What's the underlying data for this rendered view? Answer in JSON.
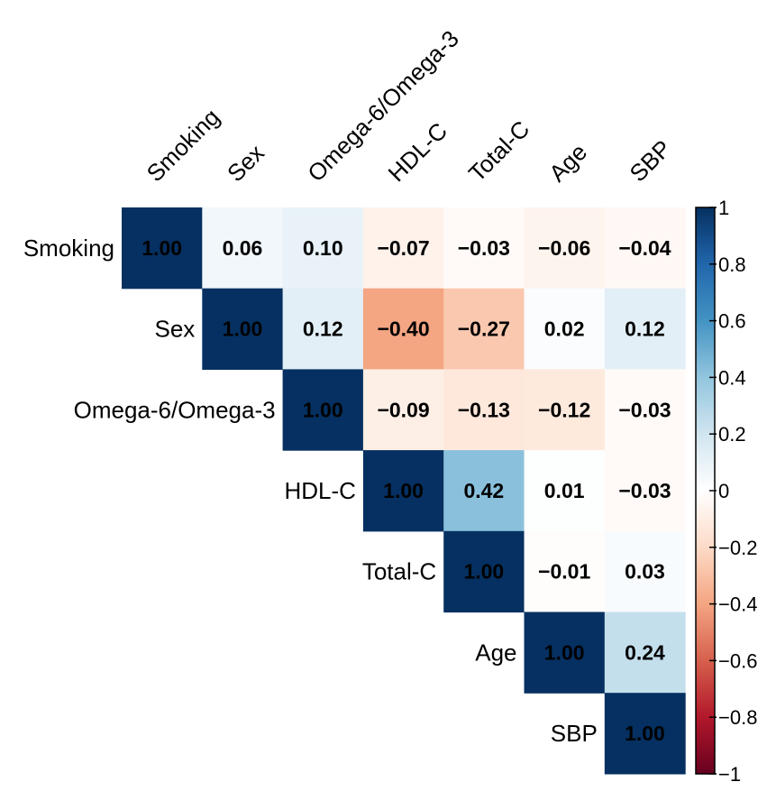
{
  "chart_data": {
    "type": "heatmap",
    "subtype": "upper-triangle correlation matrix",
    "variables": [
      "Smoking",
      "Sex",
      "Omega-6/Omega-3",
      "HDL-C",
      "Total-C",
      "Age",
      "SBP"
    ],
    "matrix": [
      [
        1.0,
        0.06,
        0.1,
        -0.07,
        -0.03,
        -0.06,
        -0.04
      ],
      [
        null,
        1.0,
        0.12,
        -0.4,
        -0.27,
        0.02,
        0.12
      ],
      [
        null,
        null,
        1.0,
        -0.09,
        -0.13,
        -0.12,
        -0.03
      ],
      [
        null,
        null,
        null,
        1.0,
        0.42,
        0.01,
        -0.03
      ],
      [
        null,
        null,
        null,
        null,
        1.0,
        -0.01,
        0.03
      ],
      [
        null,
        null,
        null,
        null,
        null,
        1.0,
        0.24
      ],
      [
        null,
        null,
        null,
        null,
        null,
        null,
        1.0
      ]
    ],
    "value_labels": [
      [
        "1.00",
        "0.06",
        "0.10",
        "−0.07",
        "−0.03",
        "−0.06",
        "−0.04"
      ],
      [
        null,
        "1.00",
        "0.12",
        "−0.40",
        "−0.27",
        "0.02",
        "0.12"
      ],
      [
        null,
        null,
        "1.00",
        "−0.09",
        "−0.13",
        "−0.12",
        "−0.03"
      ],
      [
        null,
        null,
        null,
        "1.00",
        "0.42",
        "0.01",
        "−0.03"
      ],
      [
        null,
        null,
        null,
        null,
        "1.00",
        "−0.01",
        "0.03"
      ],
      [
        null,
        null,
        null,
        null,
        null,
        "1.00",
        "0.24"
      ],
      [
        null,
        null,
        null,
        null,
        null,
        null,
        "1.00"
      ]
    ],
    "colorbar": {
      "range": [
        -1,
        1
      ],
      "ticks": [
        1,
        0.8,
        0.6,
        0.4,
        0.2,
        0,
        -0.2,
        -0.4,
        -0.6,
        -0.8,
        -1
      ],
      "tick_labels": [
        "1",
        "0.8",
        "0.6",
        "0.4",
        "0.2",
        "0",
        "−0.2",
        "−0.4",
        "−0.6",
        "−0.8",
        "−1"
      ],
      "colors": [
        "#67001F",
        "#B2182B",
        "#D6604D",
        "#F4A582",
        "#FDDBC7",
        "#FFFFFF",
        "#D1E5F0",
        "#92C5DE",
        "#4393C3",
        "#2166AC",
        "#053061"
      ],
      "placement": "right"
    }
  }
}
